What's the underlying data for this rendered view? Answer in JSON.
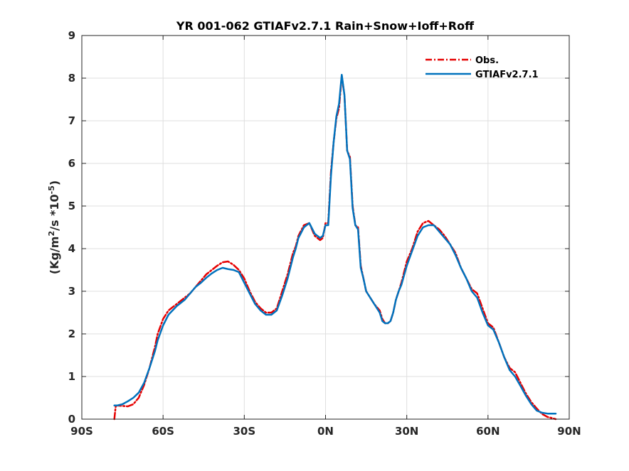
{
  "chart_data": {
    "type": "line",
    "title": "YR 001-062 GTIAFv2.7.1  Rain+Snow+Ioff+Roff",
    "ylabel_parts": [
      "(Kg/m",
      "2",
      "/s *10",
      "-5",
      ")"
    ],
    "xlabel": "",
    "xlim": [
      -90,
      90
    ],
    "ylim": [
      0,
      9
    ],
    "x_ticks": [
      -90,
      -60,
      -30,
      0,
      30,
      60,
      90
    ],
    "x_tick_labels": [
      "90S",
      "60S",
      "30S",
      "0N",
      "30N",
      "60N",
      "90N"
    ],
    "y_ticks": [
      0,
      1,
      2,
      3,
      4,
      5,
      6,
      7,
      8,
      9
    ],
    "y_tick_labels": [
      "0",
      "1",
      "2",
      "3",
      "4",
      "5",
      "6",
      "7",
      "8",
      "9"
    ],
    "grid": true,
    "legend_position": "top-right",
    "series": [
      {
        "name": "Obs.",
        "color": "#e60000",
        "style": "dash-dot",
        "x": [
          -78,
          -77.5,
          -77,
          -75,
          -73,
          -71,
          -69,
          -67,
          -65,
          -63,
          -62,
          -60,
          -58,
          -55,
          -52,
          -50,
          -48,
          -46,
          -44,
          -42,
          -40,
          -38,
          -36,
          -34,
          -32,
          -30,
          -28,
          -26,
          -24,
          -22,
          -20,
          -18,
          -16,
          -14,
          -12,
          -11,
          -10,
          -8,
          -6,
          -4,
          -3,
          -2,
          -1,
          0,
          1,
          2,
          3,
          4,
          5,
          6,
          7,
          8,
          9,
          10,
          11,
          12,
          13,
          14,
          15,
          16,
          18,
          20,
          21,
          22,
          23,
          24,
          25,
          26,
          27,
          28,
          30,
          32,
          34,
          36,
          38,
          40,
          42,
          44,
          46,
          48,
          50,
          52,
          54,
          56,
          58,
          60,
          62,
          64,
          66,
          68,
          70,
          72,
          74,
          76,
          78,
          80,
          82,
          84,
          85
        ],
        "values": [
          0.0,
          0.3,
          0.32,
          0.31,
          0.3,
          0.35,
          0.5,
          0.8,
          1.2,
          1.7,
          2.0,
          2.35,
          2.55,
          2.7,
          2.85,
          2.95,
          3.1,
          3.25,
          3.4,
          3.5,
          3.6,
          3.68,
          3.7,
          3.62,
          3.5,
          3.3,
          3.0,
          2.75,
          2.6,
          2.5,
          2.5,
          2.6,
          3.0,
          3.4,
          3.9,
          4.05,
          4.3,
          4.55,
          4.6,
          4.3,
          4.25,
          4.2,
          4.25,
          4.6,
          4.6,
          5.8,
          6.5,
          7.05,
          7.3,
          8.05,
          7.6,
          6.3,
          6.15,
          5.0,
          4.55,
          4.5,
          3.6,
          3.3,
          3.0,
          2.9,
          2.7,
          2.55,
          2.35,
          2.25,
          2.25,
          2.3,
          2.5,
          2.8,
          3.0,
          3.2,
          3.7,
          4.0,
          4.4,
          4.6,
          4.65,
          4.55,
          4.45,
          4.3,
          4.1,
          3.9,
          3.55,
          3.3,
          3.05,
          2.95,
          2.6,
          2.25,
          2.15,
          1.8,
          1.45,
          1.2,
          1.1,
          0.85,
          0.6,
          0.4,
          0.25,
          0.12,
          0.05,
          0.02,
          0.0
        ]
      },
      {
        "name": "GTIAFv2.7.1",
        "color": "#0072bd",
        "style": "solid",
        "x": [
          -78,
          -77,
          -75,
          -73,
          -71,
          -69,
          -67,
          -65,
          -63,
          -62,
          -60,
          -58,
          -55,
          -52,
          -50,
          -48,
          -46,
          -44,
          -42,
          -40,
          -38,
          -36,
          -34,
          -32,
          -30,
          -28,
          -26,
          -24,
          -22,
          -20,
          -18,
          -16,
          -14,
          -12,
          -11,
          -10,
          -8,
          -6,
          -4,
          -3,
          -2,
          -1,
          0,
          1,
          2,
          3,
          4,
          5,
          6,
          7,
          8,
          9,
          10,
          11,
          12,
          13,
          14,
          15,
          16,
          18,
          20,
          21,
          22,
          23,
          24,
          25,
          26,
          27,
          28,
          30,
          32,
          34,
          36,
          38,
          40,
          42,
          44,
          46,
          48,
          50,
          52,
          54,
          56,
          58,
          60,
          62,
          64,
          66,
          68,
          70,
          72,
          74,
          76,
          78,
          80,
          82,
          84,
          85
        ],
        "values": [
          0.32,
          0.32,
          0.35,
          0.42,
          0.5,
          0.62,
          0.85,
          1.2,
          1.6,
          1.85,
          2.2,
          2.45,
          2.65,
          2.8,
          2.95,
          3.1,
          3.2,
          3.32,
          3.42,
          3.5,
          3.55,
          3.52,
          3.5,
          3.45,
          3.2,
          2.95,
          2.7,
          2.55,
          2.45,
          2.45,
          2.55,
          2.9,
          3.3,
          3.8,
          4.0,
          4.25,
          4.5,
          4.6,
          4.35,
          4.3,
          4.25,
          4.3,
          4.55,
          4.55,
          5.7,
          6.5,
          7.1,
          7.4,
          8.08,
          7.6,
          6.3,
          6.1,
          4.95,
          4.55,
          4.45,
          3.55,
          3.3,
          3.0,
          2.9,
          2.7,
          2.5,
          2.3,
          2.25,
          2.25,
          2.3,
          2.5,
          2.8,
          3.0,
          3.15,
          3.6,
          3.95,
          4.3,
          4.5,
          4.55,
          4.55,
          4.4,
          4.25,
          4.1,
          3.85,
          3.55,
          3.3,
          3.0,
          2.85,
          2.5,
          2.2,
          2.1,
          1.8,
          1.45,
          1.15,
          1.0,
          0.78,
          0.55,
          0.35,
          0.2,
          0.15,
          0.13,
          0.13,
          0.13
        ]
      }
    ]
  }
}
